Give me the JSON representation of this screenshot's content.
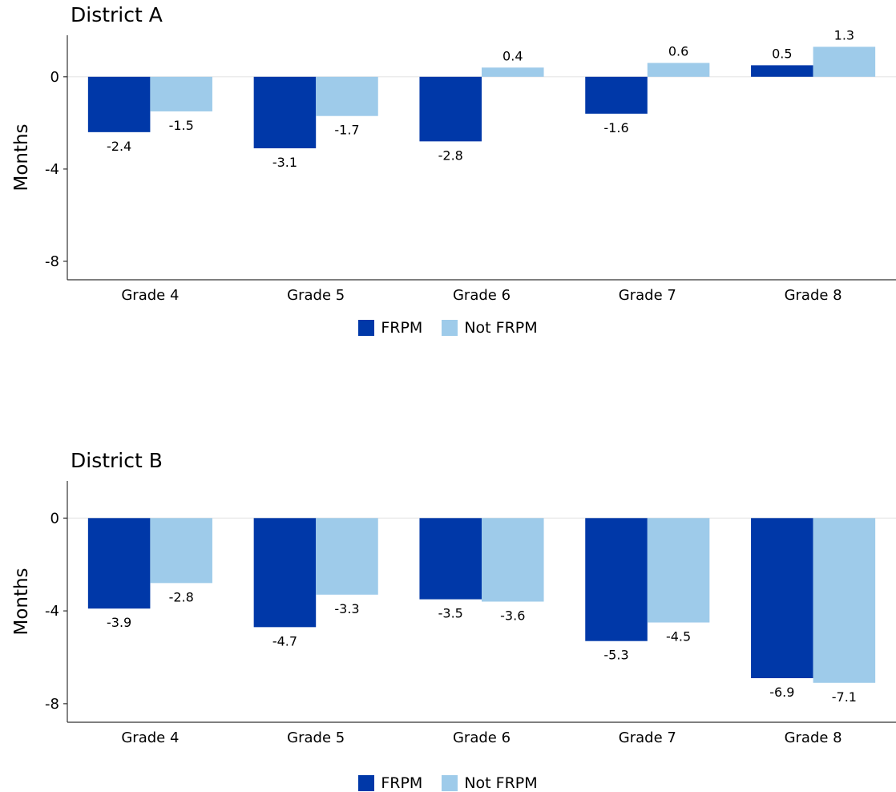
{
  "colors": {
    "frpm": "#0038a8",
    "not_frpm": "#9ecbea"
  },
  "chart_data": [
    {
      "type": "bar",
      "title": "District A",
      "ylabel": "Months",
      "categories": [
        "Grade 4",
        "Grade 5",
        "Grade 6",
        "Grade 7",
        "Grade 8"
      ],
      "series": [
        {
          "name": "FRPM",
          "values": [
            -2.4,
            -3.1,
            -2.8,
            -1.6,
            0.5
          ]
        },
        {
          "name": "Not FRPM",
          "values": [
            -1.5,
            -1.7,
            0.4,
            0.6,
            1.3
          ]
        }
      ],
      "ylim": [
        -8.8,
        1.8
      ],
      "yticks": [
        0,
        -4,
        -8
      ],
      "ytick_labels": [
        "0",
        "-4",
        "-8"
      ],
      "legend": "bottom"
    },
    {
      "type": "bar",
      "title": "District B",
      "ylabel": "Months",
      "categories": [
        "Grade 4",
        "Grade 5",
        "Grade 6",
        "Grade 7",
        "Grade 8"
      ],
      "series": [
        {
          "name": "FRPM",
          "values": [
            -3.9,
            -4.7,
            -3.5,
            -5.3,
            -6.9
          ]
        },
        {
          "name": "Not FRPM",
          "values": [
            -2.8,
            -3.3,
            -3.6,
            -4.5,
            -7.1
          ]
        }
      ],
      "ylim": [
        -8.8,
        1.6
      ],
      "yticks": [
        0,
        -4,
        -8
      ],
      "ytick_labels": [
        "0",
        "-4",
        "-8"
      ],
      "legend": "bottom"
    }
  ]
}
